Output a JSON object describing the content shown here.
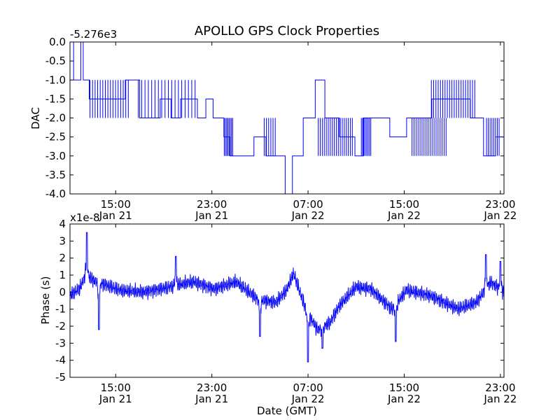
{
  "figure": {
    "title": "APOLLO GPS Clock Properties",
    "xlabel": "Date (GMT)"
  },
  "colors": {
    "series": "#0000ff",
    "axes": "#000000",
    "background": "#ffffff"
  },
  "chart_data": [
    {
      "type": "line",
      "title": "APOLLO GPS Clock Properties",
      "ylabel": "DAC",
      "offset_label": "-5.276e3",
      "ylim": [
        -4.0,
        0.0
      ],
      "yticks": [
        0.0,
        -0.5,
        -1.0,
        -1.5,
        -2.0,
        -2.5,
        -3.0,
        -3.5,
        -4.0
      ],
      "ytick_labels": [
        "0.0",
        "-0.5",
        "-1.0",
        "-1.5",
        "-2.0",
        "-2.5",
        "-3.0",
        "-3.5",
        "-4.0"
      ],
      "xlim_hours": [
        11.2,
        47.3
      ],
      "xticks_hours": [
        15,
        23,
        31,
        39,
        47
      ],
      "xtick_labels": [
        [
          "15:00",
          "Jan 21"
        ],
        [
          "23:00",
          "Jan 21"
        ],
        [
          "07:00",
          "Jan 22"
        ],
        [
          "15:00",
          "Jan 22"
        ],
        [
          "23:00",
          "Jan 22"
        ]
      ],
      "series_steps": [
        {
          "start_hour": 11.2,
          "end_hour": 11.5,
          "value": 0
        },
        {
          "start_hour": 11.5,
          "end_hour": 12.1,
          "value": -1
        },
        {
          "start_hour": 12.1,
          "end_hour": 12.3,
          "value": 0
        },
        {
          "start_hour": 12.3,
          "end_hour": 12.8,
          "value": -1
        },
        {
          "start_hour": 12.8,
          "end_hour": 14.5,
          "value": -1.5
        },
        {
          "start_hour": 14.5,
          "end_hour": 15.8,
          "value": -1.5
        },
        {
          "start_hour": 15.8,
          "end_hour": 16.0,
          "value": -1
        },
        {
          "start_hour": 16.0,
          "end_hour": 17.0,
          "value": -1
        },
        {
          "start_hour": 17.0,
          "end_hour": 18.7,
          "value": -2
        },
        {
          "start_hour": 18.7,
          "end_hour": 19.6,
          "value": -1.5
        },
        {
          "start_hour": 19.6,
          "end_hour": 20.4,
          "value": -2
        },
        {
          "start_hour": 20.4,
          "end_hour": 21.8,
          "value": -1.5
        },
        {
          "start_hour": 21.8,
          "end_hour": 22.5,
          "value": -2
        },
        {
          "start_hour": 22.5,
          "end_hour": 23.1,
          "value": -1.5
        },
        {
          "start_hour": 23.1,
          "end_hour": 24.0,
          "value": -2
        },
        {
          "start_hour": 24.0,
          "end_hour": 24.5,
          "value": -2.5
        },
        {
          "start_hour": 24.5,
          "end_hour": 26.5,
          "value": -3
        },
        {
          "start_hour": 26.5,
          "end_hour": 27.5,
          "value": -2.5
        },
        {
          "start_hour": 27.5,
          "end_hour": 28.5,
          "value": -3
        },
        {
          "start_hour": 28.5,
          "end_hour": 29.1,
          "value": -3
        },
        {
          "start_hour": 29.1,
          "end_hour": 29.7,
          "value": -4
        },
        {
          "start_hour": 29.7,
          "end_hour": 30.6,
          "value": -3
        },
        {
          "start_hour": 30.6,
          "end_hour": 31.6,
          "value": -2
        },
        {
          "start_hour": 31.6,
          "end_hour": 32.4,
          "value": -1
        },
        {
          "start_hour": 32.4,
          "end_hour": 33.6,
          "value": -2
        },
        {
          "start_hour": 33.6,
          "end_hour": 34.9,
          "value": -2.5
        },
        {
          "start_hour": 34.9,
          "end_hour": 35.6,
          "value": -3
        },
        {
          "start_hour": 35.6,
          "end_hour": 37.8,
          "value": -2
        },
        {
          "start_hour": 37.8,
          "end_hour": 39.2,
          "value": -2.5
        },
        {
          "start_hour": 39.2,
          "end_hour": 41.3,
          "value": -2
        },
        {
          "start_hour": 41.3,
          "end_hour": 42.7,
          "value": -1.5
        },
        {
          "start_hour": 42.7,
          "end_hour": 44.5,
          "value": -1.5
        },
        {
          "start_hour": 44.5,
          "end_hour": 45.6,
          "value": -2
        },
        {
          "start_hour": 45.6,
          "end_hour": 46.6,
          "value": -3
        },
        {
          "start_hour": 46.6,
          "end_hour": 47.3,
          "value": -2.5
        }
      ]
    },
    {
      "type": "line",
      "ylabel": "Phase (s)",
      "offset_label": "x1e-8",
      "ylim": [
        -5,
        4
      ],
      "yticks": [
        4,
        3,
        2,
        1,
        0,
        -1,
        -2,
        -3,
        -4,
        -5
      ],
      "ytick_labels": [
        "4",
        "3",
        "2",
        "1",
        "0",
        "-1",
        "-2",
        "-3",
        "-4",
        "-5"
      ],
      "xlim_hours": [
        11.2,
        47.3
      ],
      "xticks_hours": [
        15,
        23,
        31,
        39,
        47
      ],
      "xtick_labels": [
        [
          "15:00",
          "Jan 21"
        ],
        [
          "23:00",
          "Jan 21"
        ],
        [
          "07:00",
          "Jan 22"
        ],
        [
          "15:00",
          "Jan 22"
        ],
        [
          "23:00",
          "Jan 22"
        ]
      ],
      "series_trend": [
        {
          "hour": 11.2,
          "value": -0.2
        },
        {
          "hour": 12.0,
          "value": 0.2
        },
        {
          "hour": 12.5,
          "value": 1.0
        },
        {
          "hour": 13.2,
          "value": 0.7
        },
        {
          "hour": 14.3,
          "value": 0.4
        },
        {
          "hour": 15.4,
          "value": 0.1
        },
        {
          "hour": 17.2,
          "value": 0.0
        },
        {
          "hour": 19.5,
          "value": 0.3
        },
        {
          "hour": 21.5,
          "value": 0.6
        },
        {
          "hour": 23.2,
          "value": 0.2
        },
        {
          "hour": 25.0,
          "value": 0.6
        },
        {
          "hour": 26.8,
          "value": -0.4
        },
        {
          "hour": 28.3,
          "value": -0.6
        },
        {
          "hour": 29.2,
          "value": 0.1
        },
        {
          "hour": 29.8,
          "value": 1.1
        },
        {
          "hour": 30.8,
          "value": -1.0
        },
        {
          "hour": 31.8,
          "value": -2.2
        },
        {
          "hour": 32.8,
          "value": -1.8
        },
        {
          "hour": 33.6,
          "value": -0.8
        },
        {
          "hour": 35.0,
          "value": 0.3
        },
        {
          "hour": 36.2,
          "value": 0.2
        },
        {
          "hour": 38.0,
          "value": -1.0
        },
        {
          "hour": 39.2,
          "value": 0.1
        },
        {
          "hour": 41.2,
          "value": -0.2
        },
        {
          "hour": 43.5,
          "value": -1.0
        },
        {
          "hour": 45.0,
          "value": -0.6
        },
        {
          "hour": 46.2,
          "value": 0.6
        },
        {
          "hour": 47.3,
          "value": 0.0
        }
      ],
      "noise_amplitude": 0.55,
      "spike_events": [
        {
          "hour": 12.6,
          "value": 3.5
        },
        {
          "hour": 13.6,
          "value": -2.2
        },
        {
          "hour": 20.0,
          "value": 2.1
        },
        {
          "hour": 27.0,
          "value": -2.6
        },
        {
          "hour": 31.0,
          "value": -4.1
        },
        {
          "hour": 32.2,
          "value": -3.3
        },
        {
          "hour": 38.3,
          "value": -2.9
        },
        {
          "hour": 45.8,
          "value": 2.2
        },
        {
          "hour": 47.0,
          "value": 1.8
        }
      ]
    }
  ]
}
